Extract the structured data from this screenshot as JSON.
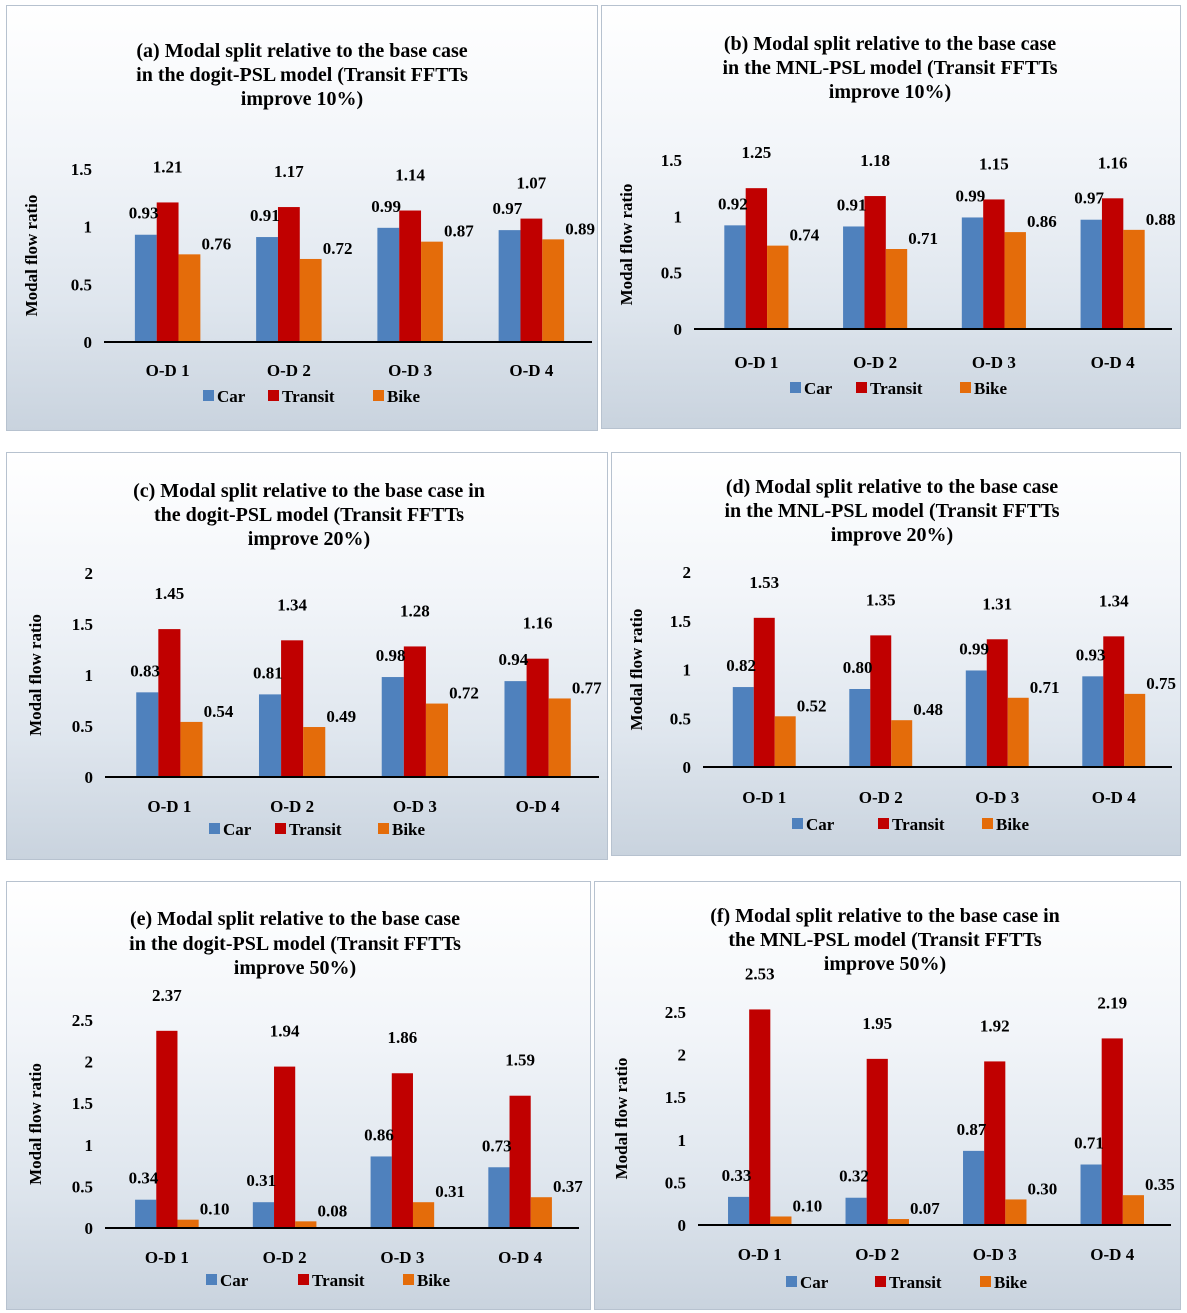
{
  "colors": {
    "Car": "#4f81bd",
    "Transit": "#c00000",
    "Bike": "#e46c0a"
  },
  "chart_data": [
    {
      "type": "bar",
      "title_lines": [
        "(a)  Modal split relative to the base case",
        "in the dogit-PSL model (Transit FFTTs",
        "improve 10%)"
      ],
      "ylabel": "Modal flow ratio",
      "categories": [
        "O-D 1",
        "O-D 2",
        "O-D 3",
        "O-D 4"
      ],
      "ylim": [
        0,
        1.5
      ],
      "yticks": [
        "0",
        "0.5",
        "1",
        "1.5"
      ],
      "series": [
        {
          "name": "Car",
          "values": [
            0.93,
            0.91,
            0.99,
            0.97
          ],
          "labels": [
            "0.93",
            "0.91",
            "0.99",
            "0.97"
          ]
        },
        {
          "name": "Transit",
          "values": [
            1.21,
            1.17,
            1.14,
            1.07
          ],
          "labels": [
            "1.21",
            "1.17",
            "1.14",
            "1.07"
          ]
        },
        {
          "name": "Bike",
          "values": [
            0.76,
            0.72,
            0.87,
            0.89
          ],
          "labels": [
            "0.76",
            "0.72",
            "0.87",
            "0.89"
          ]
        }
      ]
    },
    {
      "type": "bar",
      "title_lines": [
        "(b)  Modal split relative to the base case",
        "in the MNL-PSL model (Transit FFTTs",
        "improve 10%)"
      ],
      "ylabel": "Modal flow ratio",
      "categories": [
        "O-D 1",
        "O-D 2",
        "O-D 3",
        "O-D 4"
      ],
      "ylim": [
        0,
        1.5
      ],
      "yticks": [
        "0",
        "0.5",
        "1",
        "1.5"
      ],
      "series": [
        {
          "name": "Car",
          "values": [
            0.92,
            0.91,
            0.99,
            0.97
          ],
          "labels": [
            "0.92",
            "0.91",
            "0.99",
            "0.97"
          ]
        },
        {
          "name": "Transit",
          "values": [
            1.25,
            1.18,
            1.15,
            1.16
          ],
          "labels": [
            "1.25",
            "1.18",
            "1.15",
            "1.16"
          ]
        },
        {
          "name": "Bike",
          "values": [
            0.74,
            0.71,
            0.86,
            0.88
          ],
          "labels": [
            "0.74",
            "0.71",
            "0.86",
            "0.88"
          ]
        }
      ]
    },
    {
      "type": "bar",
      "title_lines": [
        "(c)  Modal split relative to the base case in",
        "the dogit-PSL model (Transit FFTTs",
        "improve 20%)"
      ],
      "ylabel": "Modal flow ratio",
      "categories": [
        "O-D 1",
        "O-D 2",
        "O-D 3",
        "O-D 4"
      ],
      "ylim": [
        0,
        2
      ],
      "yticks": [
        "0",
        "0.5",
        "1",
        "1.5",
        "2"
      ],
      "series": [
        {
          "name": "Car",
          "values": [
            0.83,
            0.81,
            0.98,
            0.94
          ],
          "labels": [
            "0.83",
            "0.81",
            "0.98",
            "0.94"
          ]
        },
        {
          "name": "Transit",
          "values": [
            1.45,
            1.34,
            1.28,
            1.16
          ],
          "labels": [
            "1.45",
            "1.34",
            "1.28",
            "1.16"
          ]
        },
        {
          "name": "Bike",
          "values": [
            0.54,
            0.49,
            0.72,
            0.77
          ],
          "labels": [
            "0.54",
            "0.49",
            "0.72",
            "0.77"
          ]
        }
      ]
    },
    {
      "type": "bar",
      "title_lines": [
        "(d)  Modal split relative to the base case",
        "in the MNL-PSL model (Transit FFTTs",
        "improve 20%)"
      ],
      "ylabel": "Modal flow ratio",
      "categories": [
        "O-D 1",
        "O-D 2",
        "O-D 3",
        "O-D 4"
      ],
      "ylim": [
        0,
        2
      ],
      "yticks": [
        "0",
        "0.5",
        "1",
        "1.5",
        "2"
      ],
      "series": [
        {
          "name": "Car",
          "values": [
            0.82,
            0.8,
            0.99,
            0.93
          ],
          "labels": [
            "0.82",
            "0.80",
            "0.99",
            "0.93"
          ]
        },
        {
          "name": "Transit",
          "values": [
            1.53,
            1.35,
            1.31,
            1.34
          ],
          "labels": [
            "1.53",
            "1.35",
            "1.31",
            "1.34"
          ]
        },
        {
          "name": "Bike",
          "values": [
            0.52,
            0.48,
            0.71,
            0.75
          ],
          "labels": [
            "0.52",
            "0.48",
            "0.71",
            "0.75"
          ]
        }
      ]
    },
    {
      "type": "bar",
      "title_lines": [
        "(e)  Modal split relative to the base case",
        "in the dogit-PSL model (Transit FFTTs",
        "improve 50%)"
      ],
      "ylabel": "Modal flow ratio",
      "categories": [
        "O-D 1",
        "O-D 2",
        "O-D 3",
        "O-D 4"
      ],
      "ylim": [
        0,
        2.5
      ],
      "yticks": [
        "0",
        "0.5",
        "1",
        "1.5",
        "2",
        "2.5"
      ],
      "series": [
        {
          "name": "Car",
          "values": [
            0.34,
            0.31,
            0.86,
            0.73
          ],
          "labels": [
            "0.34",
            "0.31",
            "0.86",
            "0.73"
          ]
        },
        {
          "name": "Transit",
          "values": [
            2.37,
            1.94,
            1.86,
            1.59
          ],
          "labels": [
            "2.37",
            "1.94",
            "1.86",
            "1.59"
          ]
        },
        {
          "name": "Bike",
          "values": [
            0.1,
            0.08,
            0.31,
            0.37
          ],
          "labels": [
            "0.10",
            "0.08",
            "0.31",
            "0.37"
          ]
        }
      ]
    },
    {
      "type": "bar",
      "title_lines": [
        "(f)  Modal split relative to the base case in",
        "the MNL-PSL model (Transit FFTTs",
        "improve 50%)"
      ],
      "ylabel": "Modal flow ratio",
      "categories": [
        "O-D 1",
        "O-D 2",
        "O-D 3",
        "O-D 4"
      ],
      "ylim": [
        0,
        2.5
      ],
      "yticks": [
        "0",
        "0.5",
        "1",
        "1.5",
        "2",
        "2.5"
      ],
      "series": [
        {
          "name": "Car",
          "values": [
            0.33,
            0.32,
            0.87,
            0.71
          ],
          "labels": [
            "0.33",
            "0.32",
            "0.87",
            "0.71"
          ]
        },
        {
          "name": "Transit",
          "values": [
            2.53,
            1.95,
            1.92,
            2.19
          ],
          "labels": [
            "2.53",
            "1.95",
            "1.92",
            "2.19"
          ]
        },
        {
          "name": "Bike",
          "values": [
            0.1,
            0.07,
            0.3,
            0.35
          ],
          "labels": [
            "0.10",
            "0.07",
            "0.30",
            "0.35"
          ]
        }
      ]
    }
  ]
}
